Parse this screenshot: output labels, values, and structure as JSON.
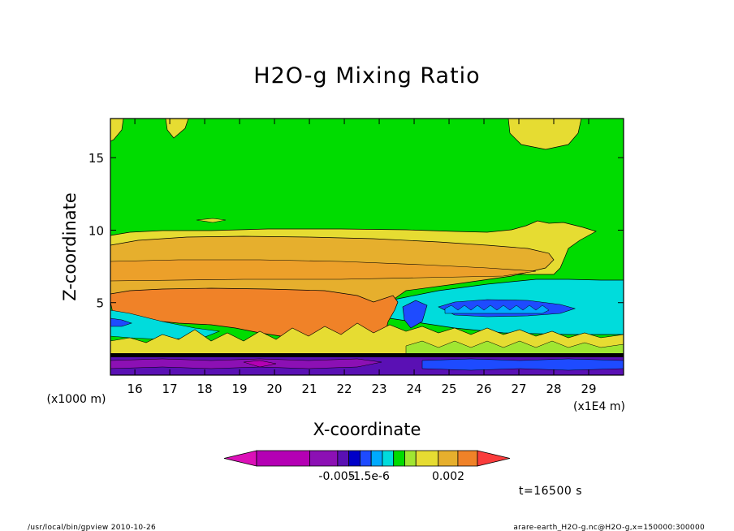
{
  "chart_data": {
    "type": "heatmap",
    "title": "H2O-g Mixing Ratio",
    "xlabel": "X-coordinate",
    "ylabel": "Z-coordinate",
    "x_unit": "(x1E4 m)",
    "y_unit": "(x1000 m)",
    "xlim": [
      15.3,
      30.0
    ],
    "ylim": [
      0.0,
      17.7
    ],
    "x_ticks": [
      16,
      17,
      18,
      19,
      20,
      21,
      22,
      23,
      24,
      25,
      26,
      27,
      28,
      29
    ],
    "y_ticks": [
      5,
      10,
      15
    ],
    "colorbar": {
      "tick_labels": [
        "-0.005",
        "-1.5e-6",
        "0.002"
      ],
      "colors": [
        "#dc10b8",
        "#b400b4",
        "#8c10b4",
        "#5a10b4",
        "#0000c8",
        "#1e4bff",
        "#00aaff",
        "#00dcdc",
        "#00dc00",
        "#a0e632",
        "#e6dc32",
        "#e6af2d",
        "#f08228",
        "#fa3c3c"
      ]
    },
    "regions": [
      {
        "name": "background",
        "level": "green",
        "color": "#00dc00"
      },
      {
        "name": "upper-yellow",
        "level": "yellow",
        "color": "#e6dc32",
        "x": [
          15.3,
          28.5
        ],
        "z": [
          8.4,
          10.0
        ]
      },
      {
        "name": "upper-orange",
        "level": "light-orange",
        "color": "#e6af2d",
        "x": [
          15.3,
          28.2
        ],
        "z": [
          5.0,
          9.2
        ]
      },
      {
        "name": "plume-core",
        "level": "dark-orange",
        "color": "#f08228",
        "x": [
          15.3,
          23.5
        ],
        "z": [
          2.0,
          5.8
        ]
      },
      {
        "name": "anvil-cyan",
        "level": "cyan",
        "color": "#00dcdc",
        "x": [
          23.2,
          30.0
        ],
        "z": [
          2.8,
          6.7
        ]
      },
      {
        "name": "anvil-blue",
        "level": "blue",
        "color": "#1e4bff",
        "x": [
          23.8,
          28.2
        ],
        "z": [
          3.9,
          5.2
        ]
      },
      {
        "name": "surface-layer",
        "level": "purple",
        "color": "#5a10b4",
        "x": [
          15.3,
          30.0
        ],
        "z": [
          0.0,
          1.5
        ]
      }
    ]
  },
  "labels": {
    "time": "t=16500 s",
    "footer_left": "/usr/local/bin/gpview  2010-10-26",
    "footer_right": "arare-earth_H2O-g.nc@H2O-g,x=150000:300000"
  }
}
